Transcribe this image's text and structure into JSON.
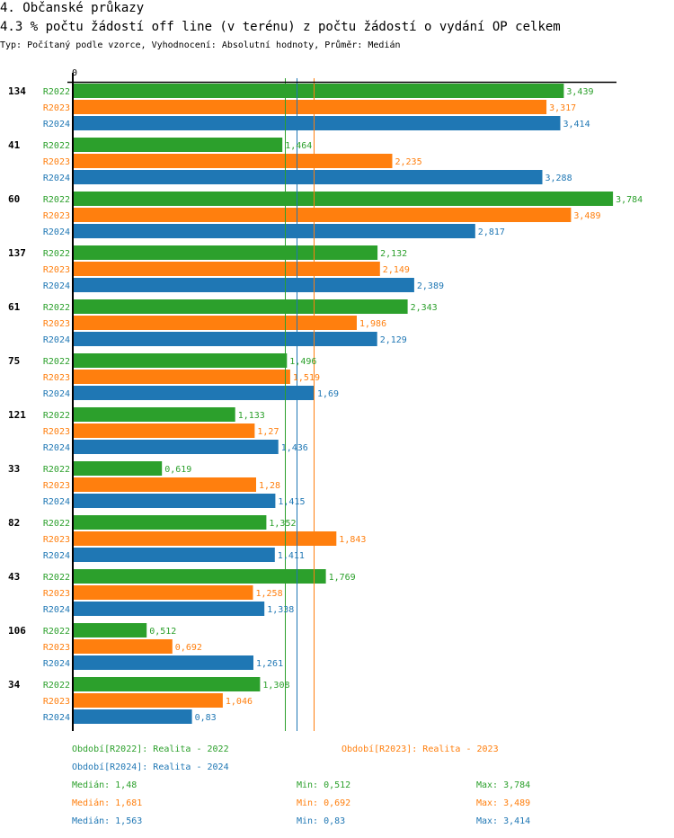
{
  "header": {
    "section_title": "4. Občanské průkazy",
    "chart_title": "4.3 % počtu žádostí off line (v terénu) z počtu žádostí o vydání OP celkem",
    "subtitle": "Typ: Počítaný podle vzorce, Vyhodnocení: Absolutní hodnoty, Průměr: Medián"
  },
  "colors": {
    "R2022": "#2ca02c",
    "R2023": "#ff7f0e",
    "R2024": "#1f77b4"
  },
  "legend": {
    "periods": [
      "Období[R2022]: Realita - 2022",
      "Období[R2023]: Realita - 2023",
      "Období[R2024]: Realita - 2024"
    ],
    "stats": [
      {
        "median": "Medián: 1,48",
        "min": "Min: 0,512",
        "max": "Max: 3,784"
      },
      {
        "median": "Medián: 1,681",
        "min": "Min: 0,692",
        "max": "Max: 3,489"
      },
      {
        "median": "Medián: 1,563",
        "min": "Min: 0,83",
        "max": "Max: 3,414"
      }
    ]
  },
  "chart_data": {
    "type": "bar",
    "orientation": "horizontal",
    "title": "4.3 % počtu žádostí off line (v terénu) z počtu žádostí o vydání OP celkem",
    "xlabel": "",
    "ylabel": "",
    "x_tick_labels": [
      "0"
    ],
    "xlim": [
      0,
      3.82
    ],
    "grid": false,
    "decimal_separator": ",",
    "categories": [
      "134",
      "41",
      "60",
      "137",
      "61",
      "75",
      "121",
      "33",
      "82",
      "43",
      "106",
      "34"
    ],
    "series": [
      {
        "name": "R2022",
        "color": "#2ca02c",
        "values": [
          3.439,
          1.464,
          3.784,
          2.132,
          2.343,
          1.496,
          1.133,
          0.619,
          1.352,
          1.769,
          0.512,
          1.308
        ],
        "labels": [
          "3,439",
          "1,464",
          "3,784",
          "2,132",
          "2,343",
          "1,496",
          "1,133",
          "0,619",
          "1,352",
          "1,769",
          "0,512",
          "1,308"
        ],
        "median": 1.48
      },
      {
        "name": "R2023",
        "color": "#ff7f0e",
        "values": [
          3.317,
          2.235,
          3.489,
          2.149,
          1.986,
          1.519,
          1.27,
          1.28,
          1.843,
          1.258,
          0.692,
          1.046
        ],
        "labels": [
          "3,317",
          "2,235",
          "3,489",
          "2,149",
          "1,986",
          "1,519",
          "1,27",
          "1,28",
          "1,843",
          "1,258",
          "0,692",
          "1,046"
        ],
        "median": 1.681
      },
      {
        "name": "R2024",
        "color": "#1f77b4",
        "values": [
          3.414,
          3.288,
          2.817,
          2.389,
          2.129,
          1.69,
          1.436,
          1.415,
          1.411,
          1.338,
          1.261,
          0.83
        ],
        "labels": [
          "3,414",
          "3,288",
          "2,817",
          "2,389",
          "2,129",
          "1,69",
          "1,436",
          "1,415",
          "1,411",
          "1,338",
          "1,261",
          "0,83"
        ],
        "median": 1.563
      }
    ],
    "reference_lines": "median per series (vertical)"
  }
}
